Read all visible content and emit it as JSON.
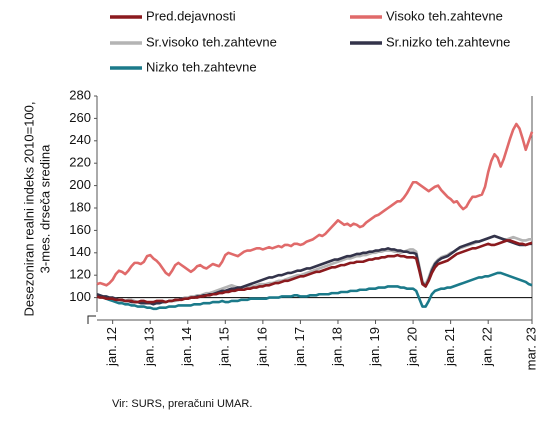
{
  "chart_data": {
    "type": "line",
    "y_label": [
      "Desezoniran realni indeks 2010=100,",
      "3-mes. drseča sredina"
    ],
    "source": "Vir: SURS, preračuni UMAR.",
    "ylim": [
      80,
      280
    ],
    "yticks": [
      100,
      120,
      140,
      160,
      180,
      200,
      220,
      240,
      260,
      280
    ],
    "hline": 100,
    "categories": [
      null,
      null,
      null,
      null,
      null,
      "jan. 12",
      null,
      null,
      null,
      null,
      null,
      null,
      null,
      null,
      null,
      null,
      null,
      "jan. 13",
      null,
      null,
      null,
      null,
      null,
      null,
      null,
      null,
      null,
      null,
      null,
      "jan. 14",
      null,
      null,
      null,
      null,
      null,
      null,
      null,
      null,
      null,
      null,
      null,
      "jan. 15",
      null,
      null,
      null,
      null,
      null,
      null,
      null,
      null,
      null,
      null,
      null,
      "jan. 16",
      null,
      null,
      null,
      null,
      null,
      null,
      null,
      null,
      null,
      null,
      null,
      "jan. 17",
      null,
      null,
      null,
      null,
      null,
      null,
      null,
      null,
      null,
      null,
      null,
      "jan. 18",
      null,
      null,
      null,
      null,
      null,
      null,
      null,
      null,
      null,
      null,
      null,
      "jan. 19",
      null,
      null,
      null,
      null,
      null,
      null,
      null,
      null,
      null,
      null,
      null,
      "jan. 20",
      null,
      null,
      null,
      null,
      null,
      null,
      null,
      null,
      null,
      null,
      null,
      "jan. 21",
      null,
      null,
      null,
      null,
      null,
      null,
      null,
      null,
      null,
      null,
      null,
      "jan. 22",
      null,
      null,
      null,
      null,
      null,
      null,
      null,
      null,
      null,
      null,
      null,
      null,
      null,
      "mar. 23"
    ],
    "series": [
      {
        "name": "Pred.dejavnosti",
        "color": "#8b1a1e",
        "values": [
          101,
          100,
          100,
          99,
          99,
          99,
          98,
          98,
          98,
          97,
          97,
          97,
          96,
          96,
          97,
          97,
          96,
          96,
          96,
          97,
          97,
          97,
          96,
          97,
          97,
          98,
          98,
          98,
          99,
          99,
          100,
          100,
          100,
          101,
          101,
          102,
          102,
          103,
          103,
          104,
          104,
          105,
          105,
          106,
          106,
          107,
          107,
          107,
          108,
          108,
          109,
          109,
          110,
          110,
          111,
          111,
          112,
          113,
          113,
          114,
          115,
          115,
          116,
          117,
          118,
          119,
          119,
          120,
          121,
          122,
          123,
          123,
          124,
          125,
          126,
          127,
          127,
          128,
          129,
          129,
          130,
          131,
          131,
          132,
          132,
          132,
          133,
          134,
          134,
          135,
          135,
          136,
          136,
          137,
          137,
          137,
          138,
          137,
          137,
          136,
          136,
          136,
          135,
          124,
          112,
          110,
          115,
          122,
          127,
          130,
          131,
          132,
          133,
          135,
          137,
          139,
          140,
          141,
          142,
          143,
          144,
          144,
          145,
          146,
          147,
          148,
          147,
          147,
          148,
          149,
          150,
          151,
          151,
          150,
          149,
          148,
          148,
          147,
          148,
          149
        ]
      },
      {
        "name": "Visoko teh.zahtevne",
        "color": "#e06a6a",
        "values": [
          112,
          113,
          112,
          111,
          113,
          116,
          121,
          124,
          123,
          121,
          124,
          128,
          131,
          131,
          130,
          132,
          137,
          138,
          135,
          133,
          130,
          126,
          122,
          120,
          124,
          129,
          131,
          129,
          127,
          125,
          123,
          125,
          128,
          129,
          127,
          126,
          128,
          130,
          129,
          128,
          132,
          138,
          140,
          139,
          138,
          137,
          139,
          141,
          142,
          142,
          143,
          144,
          144,
          143,
          144,
          145,
          144,
          145,
          146,
          145,
          147,
          147,
          146,
          148,
          148,
          147,
          148,
          150,
          151,
          152,
          154,
          156,
          155,
          157,
          160,
          163,
          166,
          169,
          167,
          165,
          166,
          164,
          166,
          165,
          163,
          164,
          167,
          169,
          171,
          173,
          174,
          176,
          178,
          180,
          182,
          184,
          186,
          186,
          189,
          193,
          198,
          203,
          203,
          201,
          199,
          197,
          195,
          197,
          199,
          200,
          196,
          193,
          190,
          188,
          185,
          186,
          182,
          179,
          181,
          186,
          190,
          190,
          191,
          192,
          199,
          212,
          222,
          228,
          225,
          217,
          224,
          233,
          242,
          250,
          255,
          251,
          242,
          232,
          240,
          248
        ]
      },
      {
        "name": "Sr.visoko teh.zahtevne",
        "color": "#b4b4b4",
        "values": [
          100,
          101,
          100,
          100,
          99,
          100,
          99,
          98,
          97,
          97,
          98,
          98,
          97,
          96,
          96,
          96,
          95,
          95,
          95,
          96,
          96,
          96,
          96,
          97,
          97,
          97,
          98,
          99,
          100,
          100,
          101,
          101,
          102,
          102,
          103,
          104,
          104,
          105,
          106,
          107,
          108,
          109,
          110,
          111,
          110,
          109,
          109,
          108,
          109,
          110,
          110,
          111,
          112,
          112,
          112,
          113,
          113,
          114,
          115,
          115,
          116,
          117,
          118,
          119,
          120,
          120,
          121,
          122,
          123,
          124,
          125,
          126,
          127,
          128,
          129,
          130,
          131,
          132,
          133,
          134,
          135,
          135,
          136,
          137,
          137,
          138,
          138,
          139,
          140,
          140,
          141,
          141,
          142,
          142,
          142,
          141,
          141,
          140,
          141,
          142,
          143,
          143,
          141,
          128,
          114,
          112,
          118,
          126,
          131,
          134,
          136,
          137,
          138,
          140,
          141,
          143,
          144,
          145,
          146,
          147,
          148,
          149,
          150,
          151,
          152,
          153,
          154,
          155,
          154,
          153,
          152,
          152,
          153,
          154,
          153,
          152,
          151,
          151,
          152,
          152
        ]
      },
      {
        "name": "Sr.nizko teh.zahtevne",
        "color": "#33334a",
        "values": [
          103,
          102,
          101,
          101,
          100,
          100,
          99,
          98,
          98,
          97,
          97,
          96,
          96,
          96,
          95,
          95,
          95,
          95,
          94,
          95,
          95,
          96,
          96,
          97,
          97,
          98,
          98,
          99,
          99,
          99,
          100,
          100,
          101,
          101,
          102,
          102,
          103,
          103,
          104,
          105,
          106,
          106,
          107,
          108,
          108,
          109,
          109,
          110,
          111,
          112,
          113,
          114,
          115,
          116,
          117,
          118,
          118,
          119,
          120,
          120,
          121,
          122,
          122,
          123,
          124,
          124,
          125,
          126,
          126,
          127,
          128,
          129,
          130,
          131,
          132,
          133,
          134,
          134,
          135,
          136,
          137,
          137,
          138,
          139,
          139,
          140,
          140,
          141,
          141,
          142,
          142,
          143,
          143,
          144,
          143,
          143,
          142,
          142,
          141,
          141,
          140,
          140,
          139,
          126,
          113,
          110,
          116,
          124,
          130,
          133,
          135,
          136,
          137,
          139,
          141,
          143,
          145,
          146,
          147,
          148,
          149,
          150,
          150,
          151,
          152,
          153,
          154,
          155,
          154,
          153,
          152,
          151,
          150,
          149,
          148,
          147,
          147,
          147,
          148,
          148
        ]
      },
      {
        "name": "Nizko teh.zahtevne",
        "color": "#1b7a8a",
        "values": [
          102,
          101,
          100,
          99,
          98,
          97,
          96,
          95,
          95,
          94,
          94,
          93,
          93,
          92,
          92,
          92,
          91,
          91,
          90,
          90,
          91,
          91,
          91,
          92,
          92,
          92,
          93,
          93,
          93,
          93,
          93,
          94,
          94,
          94,
          95,
          95,
          95,
          96,
          96,
          96,
          97,
          96,
          96,
          97,
          97,
          97,
          98,
          98,
          98,
          99,
          99,
          99,
          99,
          99,
          99,
          100,
          100,
          100,
          100,
          101,
          101,
          101,
          101,
          102,
          102,
          101,
          101,
          101,
          102,
          102,
          102,
          103,
          103,
          103,
          103,
          104,
          104,
          104,
          105,
          105,
          105,
          106,
          106,
          106,
          107,
          107,
          107,
          108,
          108,
          108,
          109,
          109,
          109,
          110,
          110,
          110,
          110,
          109,
          109,
          108,
          108,
          108,
          106,
          99,
          92,
          92,
          97,
          103,
          106,
          107,
          108,
          108,
          109,
          109,
          110,
          111,
          112,
          113,
          114,
          115,
          116,
          117,
          118,
          118,
          119,
          119,
          120,
          121,
          122,
          122,
          121,
          120,
          119,
          118,
          117,
          116,
          115,
          114,
          112,
          111
        ]
      }
    ]
  }
}
